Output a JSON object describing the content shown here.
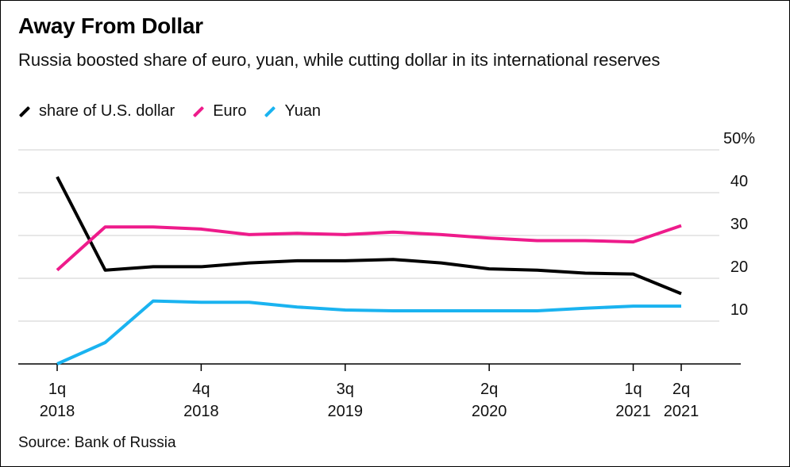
{
  "title": "Away From Dollar",
  "subtitle": "Russia boosted share of euro, yuan, while cutting dollar in its international reserves",
  "legend": [
    {
      "label": "share of U.S. dollar",
      "color": "#000000"
    },
    {
      "label": "Euro",
      "color": "#ee1b8b"
    },
    {
      "label": "Yuan",
      "color": "#1ab3f0"
    }
  ],
  "source": "Source: Bank of Russia",
  "chart_data": {
    "type": "line",
    "title": "Away From Dollar",
    "xlabel": "",
    "ylabel": "",
    "ylim": [
      0,
      50
    ],
    "y_ticks": [
      {
        "value": 50,
        "label": "50%"
      },
      {
        "value": 40,
        "label": "40"
      },
      {
        "value": 30,
        "label": "30"
      },
      {
        "value": 20,
        "label": "20"
      },
      {
        "value": 10,
        "label": "10"
      }
    ],
    "x": [
      "1q 2018",
      "2q 2018",
      "3q 2018",
      "4q 2018",
      "1q 2019",
      "2q 2019",
      "3q 2019",
      "4q 2019",
      "1q 2020",
      "2q 2020",
      "3q 2020",
      "4q 2020",
      "1q 2021",
      "2q 2021"
    ],
    "x_ticks": [
      {
        "index": 0,
        "line1": "1q",
        "line2": "2018"
      },
      {
        "index": 3,
        "line1": "4q",
        "line2": "2018"
      },
      {
        "index": 6,
        "line1": "3q",
        "line2": "2019"
      },
      {
        "index": 9,
        "line1": "2q",
        "line2": "2020"
      },
      {
        "index": 12,
        "line1": "1q",
        "line2": "2021"
      },
      {
        "index": 13,
        "line1": "2q",
        "line2": "2021"
      }
    ],
    "series": [
      {
        "name": "share of U.S. dollar",
        "color": "#000000",
        "values": [
          43.7,
          21.9,
          22.7,
          22.7,
          23.6,
          24.1,
          24.1,
          24.4,
          23.6,
          22.2,
          21.9,
          21.2,
          21.0,
          16.4
        ]
      },
      {
        "name": "Euro",
        "color": "#ee1b8b",
        "values": [
          21.9,
          32.0,
          32.0,
          31.5,
          30.2,
          30.5,
          30.2,
          30.8,
          30.2,
          29.4,
          28.8,
          28.8,
          28.5,
          32.3
        ]
      },
      {
        "name": "Yuan",
        "color": "#1ab3f0",
        "values": [
          0.0,
          5.0,
          14.7,
          14.4,
          14.4,
          13.3,
          12.6,
          12.4,
          12.4,
          12.4,
          12.4,
          13.0,
          13.5,
          13.5
        ]
      }
    ]
  }
}
